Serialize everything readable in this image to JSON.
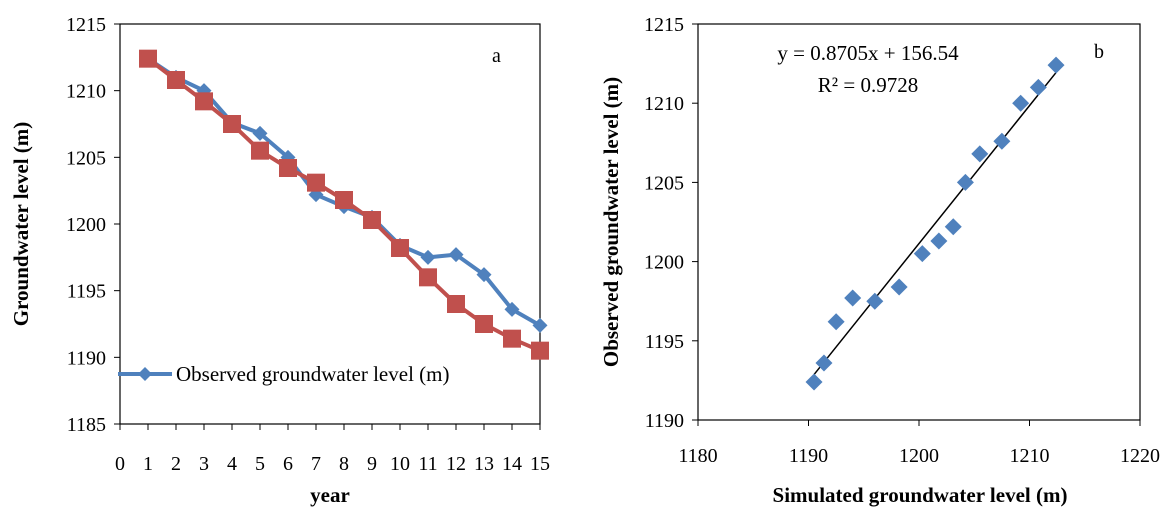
{
  "chart_data": [
    {
      "panel_label": "a",
      "type": "line",
      "xlabel": "year",
      "ylabel": "Groundwater level (m)",
      "xlim": [
        0,
        15
      ],
      "ylim": [
        1185,
        1215
      ],
      "x_ticks": [
        0,
        1,
        2,
        3,
        4,
        5,
        6,
        7,
        8,
        9,
        10,
        11,
        12,
        13,
        14,
        15
      ],
      "y_ticks": [
        1185,
        1190,
        1195,
        1200,
        1205,
        1210,
        1215
      ],
      "x": [
        1,
        2,
        3,
        4,
        5,
        6,
        7,
        8,
        9,
        10,
        11,
        12,
        13,
        14,
        15
      ],
      "series": [
        {
          "name": "Observed groundwater level (m)",
          "color": "#4F81BD",
          "marker": "diamond",
          "values": [
            1212.4,
            1211.0,
            1210.0,
            1207.6,
            1206.8,
            1205.0,
            1202.2,
            1201.3,
            1200.5,
            1198.4,
            1197.5,
            1197.7,
            1196.2,
            1193.6,
            1192.4
          ]
        },
        {
          "color": "#C0504D",
          "marker": "square",
          "values": [
            1212.4,
            1210.8,
            1209.2,
            1207.5,
            1205.5,
            1204.2,
            1203.1,
            1201.8,
            1200.3,
            1198.2,
            1196.0,
            1194.0,
            1192.5,
            1191.4,
            1190.5
          ]
        }
      ],
      "legend": "Observed groundwater level (m)",
      "legend_position": "lower-left inside plot"
    },
    {
      "panel_label": "b",
      "type": "scatter",
      "xlabel": "Simulated groundwater level (m)",
      "ylabel": "Observed groundwater level (m)",
      "xlim": [
        1180,
        1220
      ],
      "ylim": [
        1190,
        1215
      ],
      "x_ticks": [
        1180,
        1190,
        1200,
        1210,
        1220
      ],
      "y_ticks": [
        1190,
        1195,
        1200,
        1205,
        1210,
        1215
      ],
      "series": [
        {
          "color": "#4F81BD",
          "marker": "diamond",
          "x": [
            1190.5,
            1191.4,
            1192.5,
            1194.0,
            1196.0,
            1198.2,
            1200.3,
            1201.8,
            1203.1,
            1204.2,
            1205.5,
            1207.5,
            1209.2,
            1210.8,
            1212.4
          ],
          "y": [
            1192.4,
            1193.6,
            1196.2,
            1197.7,
            1197.5,
            1198.4,
            1200.5,
            1201.3,
            1202.2,
            1205.0,
            1206.8,
            1207.6,
            1210.0,
            1211.0,
            1212.4
          ]
        }
      ],
      "trendline": {
        "slope": 0.8705,
        "intercept": 156.54,
        "x_range": [
          1190.5,
          1212.4
        ],
        "color": "#000000"
      },
      "equation_text": "y = 0.8705x + 156.54",
      "r2_text": "R² = 0.9728"
    }
  ]
}
